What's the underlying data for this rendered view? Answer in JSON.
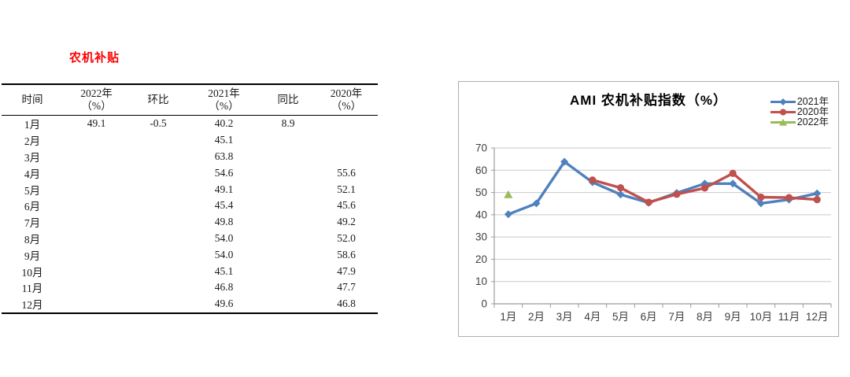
{
  "left_panel": {
    "title": "农机补贴",
    "title_color": "#ff0000",
    "table": {
      "headers": [
        {
          "l1": "时间",
          "l2": ""
        },
        {
          "l1": "2022年",
          "l2": "（%）"
        },
        {
          "l1": "环比",
          "l2": ""
        },
        {
          "l1": "2021年",
          "l2": "（%）"
        },
        {
          "l1": "同比",
          "l2": ""
        },
        {
          "l1": "2020年",
          "l2": "（%）"
        }
      ],
      "rows": [
        {
          "cells": [
            "1月",
            "49.1",
            "-0.5",
            "40.2",
            "8.9",
            ""
          ]
        },
        {
          "cells": [
            "2月",
            "",
            "",
            "45.1",
            "",
            ""
          ]
        },
        {
          "cells": [
            "3月",
            "",
            "",
            "63.8",
            "",
            ""
          ]
        },
        {
          "cells": [
            "4月",
            "",
            "",
            "54.6",
            "",
            "55.6"
          ]
        },
        {
          "cells": [
            "5月",
            "",
            "",
            "49.1",
            "",
            "52.1"
          ]
        },
        {
          "cells": [
            "6月",
            "",
            "",
            "45.4",
            "",
            "45.6"
          ]
        },
        {
          "cells": [
            "7月",
            "",
            "",
            "49.8",
            "",
            "49.2"
          ]
        },
        {
          "cells": [
            "8月",
            "",
            "",
            "54.0",
            "",
            "52.0"
          ]
        },
        {
          "cells": [
            "9月",
            "",
            "",
            "54.0",
            "",
            "58.6"
          ]
        },
        {
          "cells": [
            "10月",
            "",
            "",
            "45.1",
            "",
            "47.9"
          ]
        },
        {
          "cells": [
            "11月",
            "",
            "",
            "46.8",
            "",
            "47.7"
          ]
        },
        {
          "cells": [
            "12月",
            "",
            "",
            "49.6",
            "",
            "46.8"
          ]
        }
      ]
    }
  },
  "chart_data": {
    "type": "line",
    "title": "AMI 农机补贴指数（%）",
    "categories": [
      "1月",
      "2月",
      "3月",
      "4月",
      "5月",
      "6月",
      "7月",
      "8月",
      "9月",
      "10月",
      "11月",
      "12月"
    ],
    "series": [
      {
        "name": "2021年",
        "color": "#4F81BD",
        "marker": "diamond",
        "values": [
          40.2,
          45.1,
          63.8,
          54.6,
          49.1,
          45.4,
          49.8,
          54.0,
          54.0,
          45.1,
          46.8,
          49.6
        ]
      },
      {
        "name": "2020年",
        "color": "#C0504D",
        "marker": "circle",
        "values": [
          null,
          null,
          null,
          55.6,
          52.1,
          45.6,
          49.2,
          52.0,
          58.6,
          47.9,
          47.7,
          46.8
        ]
      },
      {
        "name": "2022年",
        "color": "#9BBB59",
        "marker": "triangle",
        "values": [
          49.1,
          null,
          null,
          null,
          null,
          null,
          null,
          null,
          null,
          null,
          null,
          null
        ]
      }
    ],
    "ylim": [
      0,
      70
    ],
    "yticks": [
      "0",
      "10",
      "20",
      "30",
      "40",
      "50",
      "60",
      "70"
    ],
    "grid": true,
    "legend_position": "top-right",
    "colors": {
      "grid": "#c9c9c9",
      "axis": "#9c9c9c",
      "tick_text": "#3f3f3f"
    }
  }
}
